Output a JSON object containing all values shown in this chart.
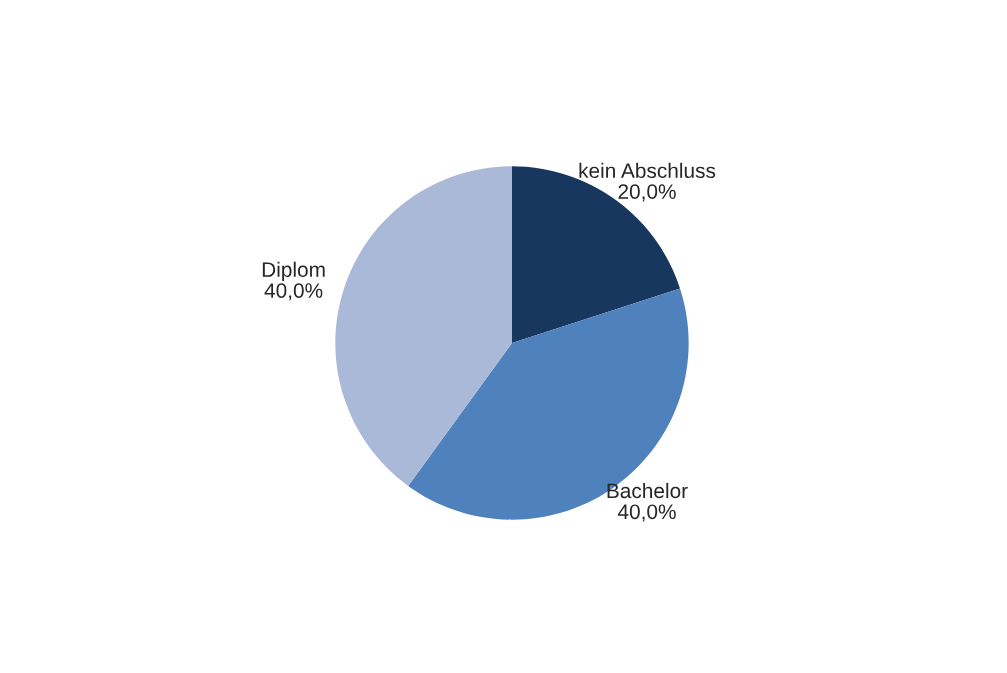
{
  "chart_data": {
    "type": "pie",
    "categories": [
      "kein Abschluss",
      "Bachelor",
      "Diplom"
    ],
    "values": [
      20,
      40,
      40
    ],
    "value_labels": [
      "20,0%",
      "40,0%",
      "40,0%"
    ],
    "colors": [
      "#17375e",
      "#4f81bd",
      "#a9b9d7"
    ],
    "legend": false
  }
}
